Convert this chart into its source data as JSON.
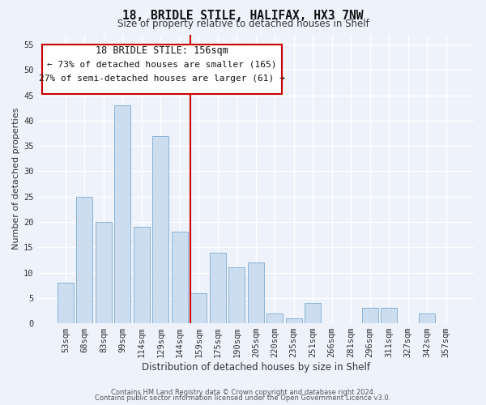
{
  "title_line1": "18, BRIDLE STILE, HALIFAX, HX3 7NW",
  "title_line2": "Size of property relative to detached houses in Shelf",
  "xlabel": "Distribution of detached houses by size in Shelf",
  "ylabel": "Number of detached properties",
  "bar_labels": [
    "53sqm",
    "68sqm",
    "83sqm",
    "99sqm",
    "114sqm",
    "129sqm",
    "144sqm",
    "159sqm",
    "175sqm",
    "190sqm",
    "205sqm",
    "220sqm",
    "235sqm",
    "251sqm",
    "266sqm",
    "281sqm",
    "296sqm",
    "311sqm",
    "327sqm",
    "342sqm",
    "357sqm"
  ],
  "bar_values": [
    8,
    25,
    20,
    43,
    19,
    37,
    18,
    6,
    14,
    11,
    12,
    2,
    1,
    4,
    0,
    0,
    3,
    3,
    0,
    2,
    0
  ],
  "bar_color": "#ccddf0",
  "bar_edge_color": "#89b4d8",
  "vline_index": 7,
  "vline_color": "#cc0000",
  "annotation_title": "18 BRIDLE STILE: 156sqm",
  "annotation_line1": "← 73% of detached houses are smaller (165)",
  "annotation_line2": "27% of semi-detached houses are larger (61) →",
  "annotation_box_facecolor": "#ffffff",
  "annotation_box_edgecolor": "#cc0000",
  "ylim": [
    0,
    57
  ],
  "yticks": [
    0,
    5,
    10,
    15,
    20,
    25,
    30,
    35,
    40,
    45,
    50,
    55
  ],
  "footer_line1": "Contains HM Land Registry data © Crown copyright and database right 2024.",
  "footer_line2": "Contains public sector information licensed under the Open Government Licence v3.0.",
  "background_color": "#eef2fa",
  "grid_color": "#ffffff",
  "title1_fontsize": 10.5,
  "title2_fontsize": 8.5,
  "tick_fontsize": 7.5,
  "ylabel_fontsize": 8,
  "xlabel_fontsize": 8.5,
  "footer_fontsize": 6,
  "ann_title_fontsize": 8.5,
  "ann_text_fontsize": 8
}
